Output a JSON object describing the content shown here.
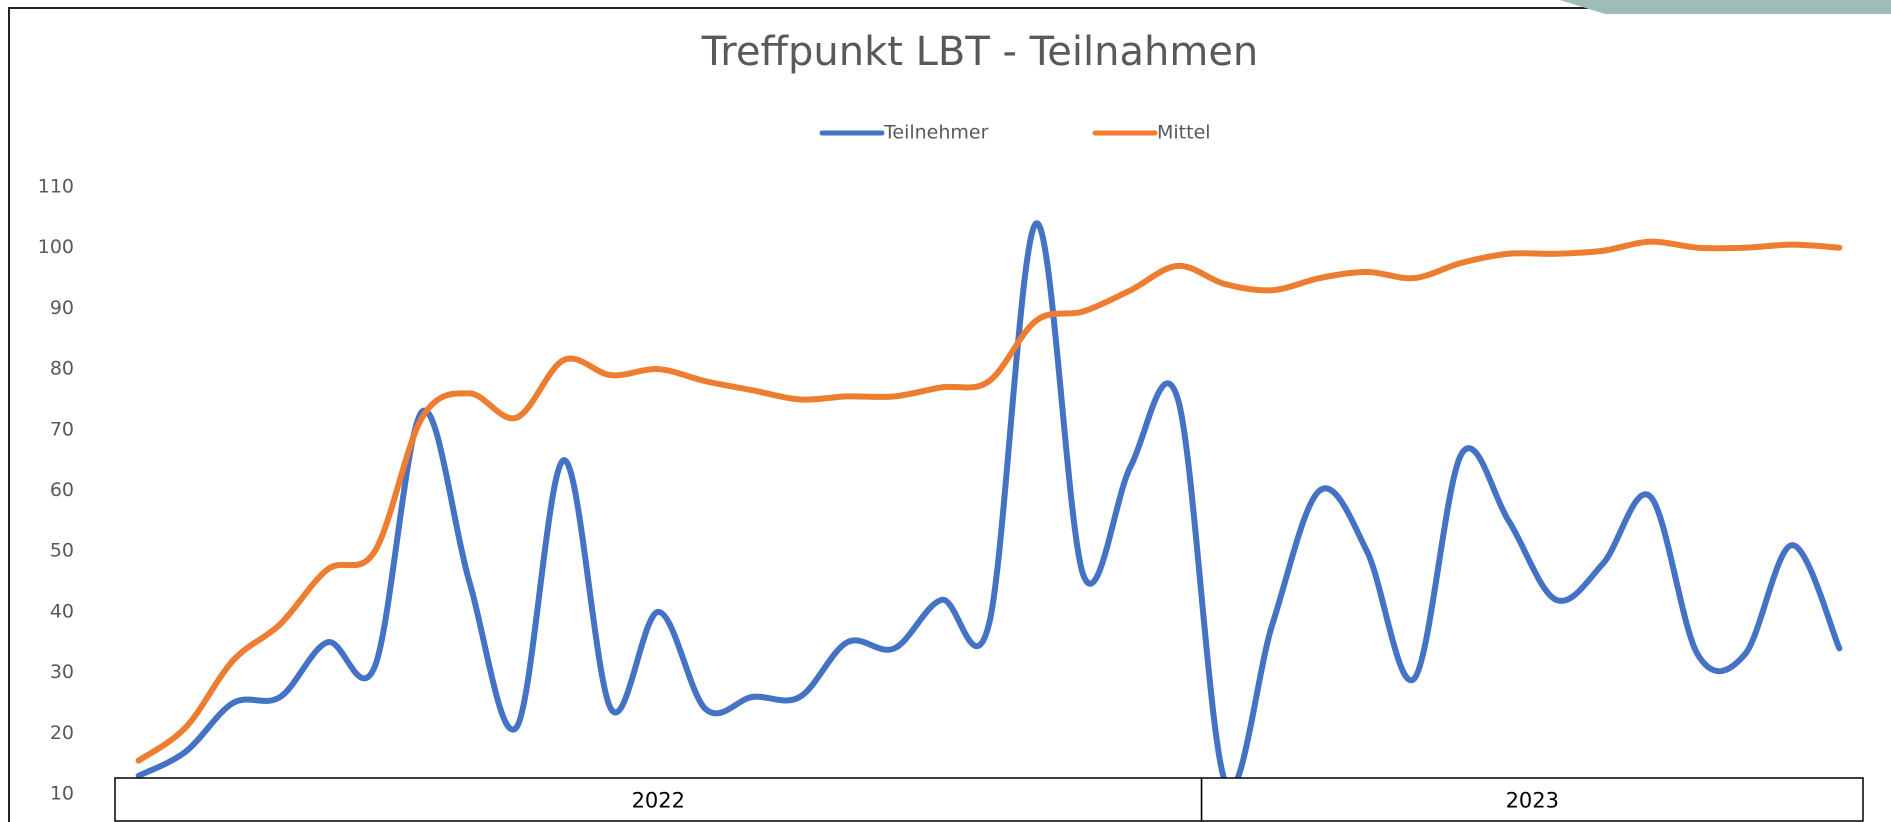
{
  "chart_data": {
    "type": "line",
    "title": "Treffpunkt LBT - Teilnahmen",
    "categories": [
      null,
      null,
      null,
      null,
      null,
      null,
      null,
      null,
      null,
      null,
      null,
      null,
      null,
      null,
      null,
      null,
      null,
      null,
      null,
      null,
      null,
      null,
      null,
      null,
      null,
      null,
      null,
      null,
      null,
      null,
      null,
      null,
      null,
      null,
      null,
      null,
      null
    ],
    "x_groups": [
      {
        "label": "2022",
        "count": 23
      },
      {
        "label": "2023",
        "count": 14
      }
    ],
    "series": [
      {
        "name": "Teilnehmer",
        "color": "#4472c4",
        "values": [
          13,
          17,
          25,
          26,
          35,
          31,
          73,
          45,
          21,
          65,
          24,
          40,
          24,
          26,
          26,
          35,
          34,
          42,
          38,
          104,
          46,
          64,
          75,
          12,
          38,
          60,
          50,
          29,
          66,
          55,
          42,
          48,
          59,
          33,
          33,
          51,
          34
        ]
      },
      {
        "name": "Mittel",
        "color": "#ed7d31",
        "values": [
          15.5,
          21,
          32,
          38,
          47,
          50,
          72,
          76,
          72,
          81.5,
          79,
          80,
          78,
          76.5,
          75,
          75.5,
          75.5,
          77,
          78,
          88,
          89.5,
          93,
          97,
          94,
          93,
          95,
          96,
          95,
          97.5,
          99,
          99,
          99.5,
          101,
          100,
          100,
          100.5,
          100
        ]
      }
    ],
    "ylim": [
      10,
      110
    ],
    "yticks": [
      10,
      20,
      30,
      40,
      50,
      60,
      70,
      80,
      90,
      100,
      110
    ],
    "grid": false,
    "legend": "top"
  }
}
